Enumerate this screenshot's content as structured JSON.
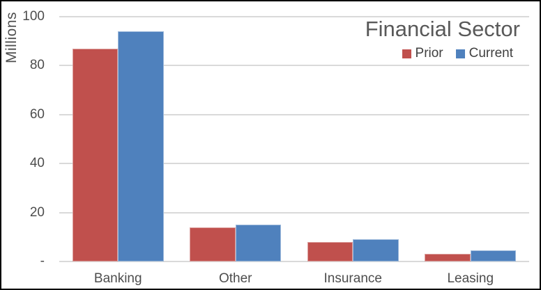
{
  "title": "Financial Sector",
  "y_axis": {
    "title": "Millions",
    "tick_labels": [
      "100",
      "80",
      "60",
      "40",
      "20",
      "-"
    ],
    "tick_values": [
      100,
      80,
      60,
      40,
      20,
      0
    ]
  },
  "legend": {
    "items": [
      {
        "label": "Prior",
        "color": "#C0504D"
      },
      {
        "label": "Current",
        "color": "#4F81BD"
      }
    ]
  },
  "chart_data": {
    "type": "bar",
    "title": "Financial Sector",
    "categories": [
      "Banking",
      "Other",
      "Insurance",
      "Leasing"
    ],
    "series": [
      {
        "name": "Prior",
        "color": "#C0504D",
        "values": [
          87,
          14,
          8,
          3
        ]
      },
      {
        "name": "Current",
        "color": "#4F81BD",
        "values": [
          94,
          15,
          9,
          4.5
        ]
      }
    ],
    "xlabel": "",
    "ylabel": "Millions",
    "ylim": [
      0,
      100
    ],
    "grid": true,
    "gridline_color": "#d9d9d9",
    "legend_position": "top-right",
    "text_color": "#595959"
  }
}
